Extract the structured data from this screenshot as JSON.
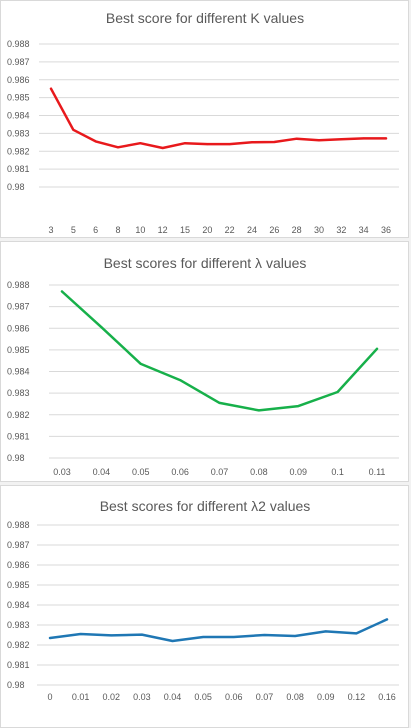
{
  "chart_data": [
    {
      "type": "line",
      "title": "Best score for different K values",
      "xlabel": "",
      "ylabel": "",
      "categories": [
        "3",
        "5",
        "6",
        "8",
        "10",
        "12",
        "15",
        "20",
        "22",
        "24",
        "26",
        "28",
        "30",
        "32",
        "34",
        "36"
      ],
      "series": [
        {
          "color": "#e8191c",
          "values": [
            0.9855,
            0.9832,
            0.98255,
            0.98222,
            0.98245,
            0.98218,
            0.98245,
            0.9824,
            0.9824,
            0.9825,
            0.98252,
            0.9827,
            0.98262,
            0.98267,
            0.98272,
            0.98272
          ]
        }
      ],
      "ylim": [
        0.98,
        0.988
      ],
      "yticks": [
        "0.98",
        "0.981",
        "0.982",
        "0.983",
        "0.984",
        "0.985",
        "0.986",
        "0.987",
        "0.988"
      ],
      "grid": true,
      "legend": "none"
    },
    {
      "type": "line",
      "title": "Best scores for different λ values",
      "xlabel": "",
      "ylabel": "",
      "categories": [
        "0.03",
        "0.04",
        "0.05",
        "0.06",
        "0.07",
        "0.08",
        "0.09",
        "0.1",
        "0.11"
      ],
      "series": [
        {
          "color": "#17b04a",
          "values": [
            0.9877,
            0.98605,
            0.98435,
            0.9836,
            0.98255,
            0.9822,
            0.9824,
            0.98305,
            0.98505
          ]
        }
      ],
      "ylim": [
        0.98,
        0.988
      ],
      "yticks": [
        "0.98",
        "0.981",
        "0.982",
        "0.983",
        "0.984",
        "0.985",
        "0.986",
        "0.987",
        "0.988"
      ],
      "grid": true,
      "legend": "none"
    },
    {
      "type": "line",
      "title": "Best scores for different λ2 values",
      "xlabel": "",
      "ylabel": "",
      "categories": [
        "0",
        "0.01",
        "0.02",
        "0.03",
        "0.04",
        "0.05",
        "0.06",
        "0.07",
        "0.08",
        "0.09",
        "0.12",
        "0.16"
      ],
      "series": [
        {
          "color": "#1f77b4",
          "values": [
            0.98235,
            0.98255,
            0.98248,
            0.98252,
            0.9822,
            0.9824,
            0.9824,
            0.9825,
            0.98245,
            0.98268,
            0.98258,
            0.98328
          ]
        }
      ],
      "ylim": [
        0.98,
        0.988
      ],
      "yticks": [
        "0.98",
        "0.981",
        "0.982",
        "0.983",
        "0.984",
        "0.985",
        "0.986",
        "0.987",
        "0.988"
      ],
      "grid": true,
      "legend": "none"
    }
  ]
}
